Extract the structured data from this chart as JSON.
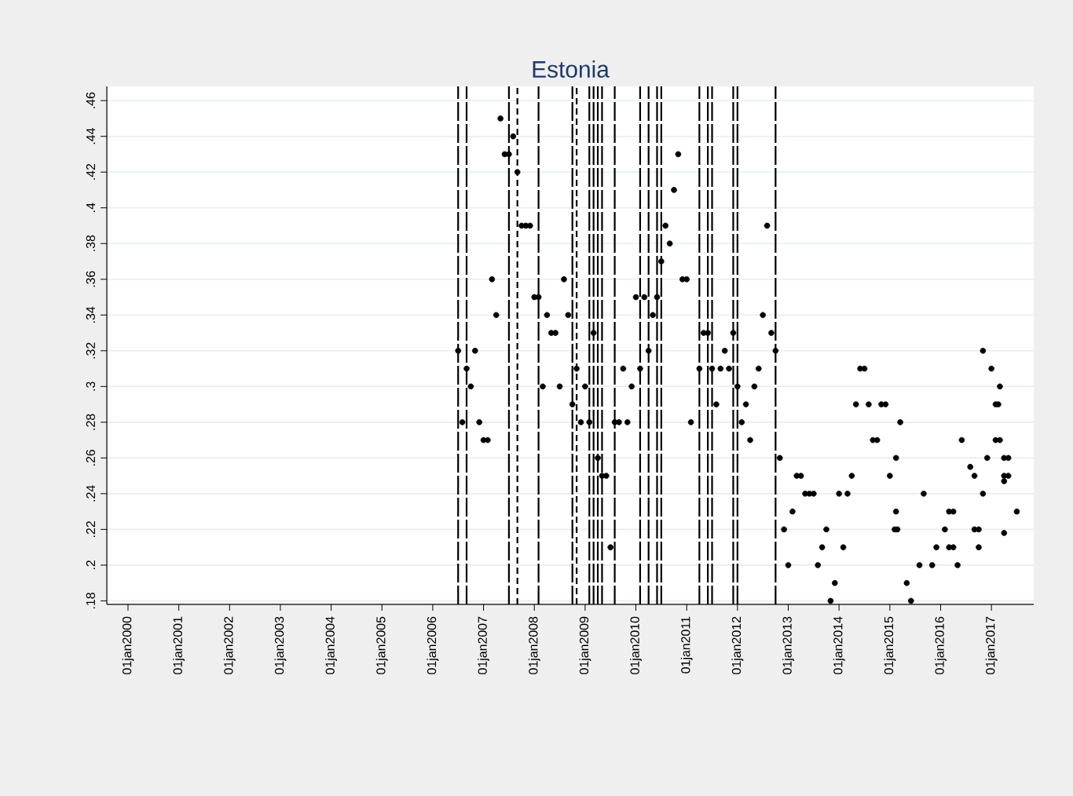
{
  "chart_data": {
    "type": "scatter",
    "title": "Estonia",
    "xlim": [
      "1999-08",
      "2017-11"
    ],
    "ylim": [
      0.178,
      0.468
    ],
    "xticks": [
      {
        "value": "2000-01-01",
        "label": "01jan2000"
      },
      {
        "value": "2001-01-01",
        "label": "01jan2001"
      },
      {
        "value": "2002-01-01",
        "label": "01jan2002"
      },
      {
        "value": "2003-01-01",
        "label": "01jan2003"
      },
      {
        "value": "2004-01-01",
        "label": "01jan2004"
      },
      {
        "value": "2005-01-01",
        "label": "01jan2005"
      },
      {
        "value": "2006-01-01",
        "label": "01jan2006"
      },
      {
        "value": "2007-01-01",
        "label": "01jan2007"
      },
      {
        "value": "2008-01-01",
        "label": "01jan2008"
      },
      {
        "value": "2009-01-01",
        "label": "01jan2009"
      },
      {
        "value": "2010-01-01",
        "label": "01jan2010"
      },
      {
        "value": "2011-01-01",
        "label": "01jan2011"
      },
      {
        "value": "2012-01-01",
        "label": "01jan2012"
      },
      {
        "value": "2013-01-01",
        "label": "01jan2013"
      },
      {
        "value": "2014-01-01",
        "label": "01jan2014"
      },
      {
        "value": "2015-01-01",
        "label": "01jan2015"
      },
      {
        "value": "2016-01-01",
        "label": "01jan2016"
      },
      {
        "value": "2017-01-01",
        "label": "01jan2017"
      }
    ],
    "yticks": [
      {
        "value": 0.18,
        "label": ".18"
      },
      {
        "value": 0.2,
        "label": ".2"
      },
      {
        "value": 0.22,
        "label": ".22"
      },
      {
        "value": 0.24,
        "label": ".24"
      },
      {
        "value": 0.26,
        "label": ".26"
      },
      {
        "value": 0.28,
        "label": ".28"
      },
      {
        "value": 0.3,
        "label": ".3"
      },
      {
        "value": 0.32,
        "label": ".32"
      },
      {
        "value": 0.34,
        "label": ".34"
      },
      {
        "value": 0.36,
        "label": ".36"
      },
      {
        "value": 0.38,
        "label": ".38"
      },
      {
        "value": 0.4,
        "label": ".4"
      },
      {
        "value": 0.42,
        "label": ".42"
      },
      {
        "value": 0.44,
        "label": ".44"
      },
      {
        "value": 0.46,
        "label": ".46"
      }
    ],
    "grid": "y",
    "series": [
      {
        "color": "#000000",
        "x": [
          "2006-07",
          "2006-08",
          "2006-09",
          "2006-10",
          "2006-11",
          "2006-12",
          "2007-01",
          "2007-02",
          "2007-03",
          "2007-04",
          "2007-05",
          "2007-06",
          "2007-07",
          "2007-08",
          "2007-09",
          "2007-10",
          "2007-11",
          "2007-12",
          "2008-01",
          "2008-02",
          "2008-03",
          "2008-04",
          "2008-05",
          "2008-06",
          "2008-07",
          "2008-08",
          "2008-09",
          "2008-10",
          "2008-11",
          "2008-12",
          "2009-01",
          "2009-02",
          "2009-03",
          "2009-04",
          "2009-05",
          "2009-06",
          "2009-07",
          "2009-08",
          "2009-09",
          "2009-10",
          "2009-11",
          "2009-12",
          "2010-01",
          "2010-02",
          "2010-03",
          "2010-04",
          "2010-05",
          "2010-06",
          "2010-07",
          "2010-08",
          "2010-09",
          "2010-10",
          "2010-11",
          "2010-12",
          "2011-01",
          "2011-02",
          "2011-04",
          "2011-05",
          "2011-06",
          "2011-07",
          "2011-08",
          "2011-09",
          "2011-10",
          "2011-11",
          "2011-12",
          "2012-01",
          "2012-02",
          "2012-03",
          "2012-04",
          "2012-05",
          "2012-06",
          "2012-07",
          "2012-08",
          "2012-09",
          "2012-10",
          "2012-11",
          "2012-12",
          "2013-01",
          "2013-02",
          "2013-03",
          "2013-04",
          "2013-05",
          "2013-06",
          "2013-07",
          "2013-08",
          "2013-09",
          "2013-10",
          "2013-11",
          "2013-12",
          "2014-01",
          "2014-02",
          "2014-03",
          "2014-04",
          "2014-05",
          "2014-06",
          "2014-07",
          "2014-08",
          "2014-09",
          "2014-10",
          "2014-11",
          "2014-12",
          "2015-01",
          "2015-02-05",
          "2015-02-15",
          "2015-02-15",
          "2015-02-25",
          "2015-03-15",
          "2015-05",
          "2015-06",
          "2015-08",
          "2015-09",
          "2015-11",
          "2015-12",
          "2016-02",
          "2016-03",
          "2016-03",
          "2016-04",
          "2016-04",
          "2016-05",
          "2016-06",
          "2016-08",
          "2016-09",
          "2016-09",
          "2016-10",
          "2016-10",
          "2016-11",
          "2016-11",
          "2016-12",
          "2017-01",
          "2017-02-01",
          "2017-02-01",
          "2017-02-20",
          "2017-03",
          "2017-03",
          "2017-04",
          "2017-04",
          "2017-04",
          "2017-04",
          "2017-05",
          "2017-05",
          "2017-07"
        ],
        "values": [
          0.32,
          0.28,
          0.31,
          0.3,
          0.32,
          0.28,
          0.27,
          0.27,
          0.36,
          0.34,
          0.45,
          0.43,
          0.43,
          0.44,
          0.42,
          0.39,
          0.39,
          0.39,
          0.35,
          0.35,
          0.3,
          0.34,
          0.33,
          0.33,
          0.3,
          0.36,
          0.34,
          0.29,
          0.31,
          0.28,
          0.3,
          0.28,
          0.33,
          0.26,
          0.25,
          0.25,
          0.21,
          0.28,
          0.28,
          0.31,
          0.28,
          0.3,
          0.35,
          0.31,
          0.35,
          0.32,
          0.34,
          0.35,
          0.37,
          0.39,
          0.38,
          0.41,
          0.43,
          0.36,
          0.36,
          0.28,
          0.31,
          0.33,
          0.33,
          0.31,
          0.29,
          0.31,
          0.32,
          0.31,
          0.33,
          0.3,
          0.28,
          0.29,
          0.27,
          0.3,
          0.31,
          0.34,
          0.39,
          0.33,
          0.32,
          0.26,
          0.22,
          0.2,
          0.23,
          0.25,
          0.25,
          0.24,
          0.24,
          0.24,
          0.2,
          0.21,
          0.22,
          0.18,
          0.19,
          0.24,
          0.21,
          0.24,
          0.25,
          0.29,
          0.31,
          0.31,
          0.29,
          0.27,
          0.27,
          0.29,
          0.29,
          0.25,
          0.22,
          0.26,
          0.23,
          0.22,
          0.28,
          0.19,
          0.18,
          0.2,
          0.24,
          0.2,
          0.21,
          0.22,
          0.23,
          0.21,
          0.23,
          0.21,
          0.2,
          0.27,
          0.255,
          0.25,
          0.22,
          0.22,
          0.21,
          0.24,
          0.32,
          0.26,
          0.31,
          0.29,
          0.27,
          0.29,
          0.27,
          0.3,
          0.25,
          0.26,
          0.218,
          0.247,
          0.26,
          0.25,
          0.23
        ]
      }
    ],
    "ref_lines": [
      {
        "axis": "x",
        "value": "2006-07",
        "line_style": "dashed"
      },
      {
        "axis": "x",
        "value": "2006-09",
        "line_style": "dashed"
      },
      {
        "axis": "x",
        "value": "2007-07",
        "line_style": "dashed"
      },
      {
        "axis": "x",
        "value": "2007-09",
        "line_style": "dotted"
      },
      {
        "axis": "x",
        "value": "2008-02",
        "line_style": "dashed"
      },
      {
        "axis": "x",
        "value": "2008-10",
        "line_style": "dashed"
      },
      {
        "axis": "x",
        "value": "2008-11",
        "line_style": "dotted"
      },
      {
        "axis": "x",
        "value": "2009-02",
        "line_style": "dashed"
      },
      {
        "axis": "x",
        "value": "2009-03",
        "line_style": "dashed"
      },
      {
        "axis": "x",
        "value": "2009-04",
        "line_style": "dashed"
      },
      {
        "axis": "x",
        "value": "2009-05",
        "line_style": "dashed"
      },
      {
        "axis": "x",
        "value": "2009-08",
        "line_style": "dashed"
      },
      {
        "axis": "x",
        "value": "2010-02",
        "line_style": "dashed"
      },
      {
        "axis": "x",
        "value": "2010-04",
        "line_style": "dashed"
      },
      {
        "axis": "x",
        "value": "2010-06",
        "line_style": "dashed"
      },
      {
        "axis": "x",
        "value": "2010-07",
        "line_style": "dashed"
      },
      {
        "axis": "x",
        "value": "2011-04",
        "line_style": "dashed"
      },
      {
        "axis": "x",
        "value": "2011-06",
        "line_style": "dashed"
      },
      {
        "axis": "x",
        "value": "2011-07",
        "line_style": "dashed"
      },
      {
        "axis": "x",
        "value": "2011-12",
        "line_style": "dashed"
      },
      {
        "axis": "x",
        "value": "2012-01",
        "line_style": "dashed"
      },
      {
        "axis": "x",
        "value": "2012-10",
        "line_style": "dashed"
      }
    ]
  }
}
